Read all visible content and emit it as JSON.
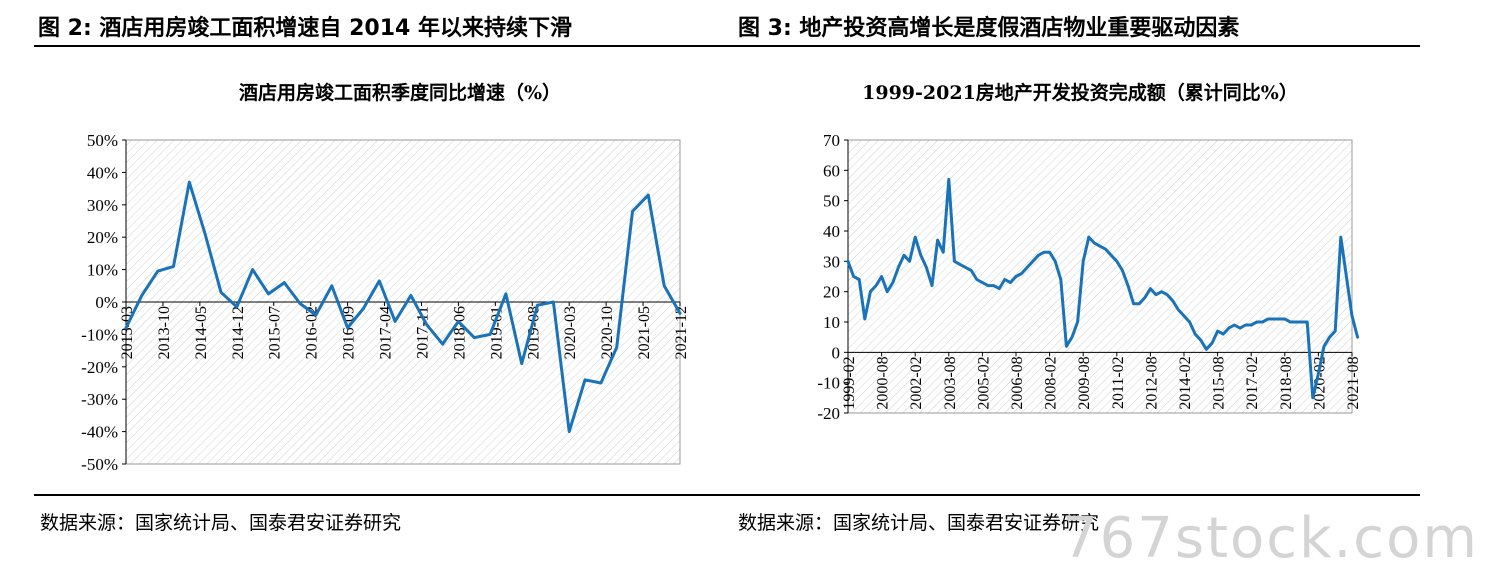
{
  "figures": [
    {
      "heading": "图 2:  酒店用房竣工面积增速自 2014 年以来持续下滑",
      "source": "数据来源：国家统计局、国泰君安证券研究"
    },
    {
      "heading": "图 3:  地产投资高增长是度假酒店物业重要驱动因素",
      "source": "数据来源：国家统计局、国泰君安证券研究"
    }
  ],
  "watermark": "767stock.com",
  "colors": {
    "line": "#1a73b8",
    "grid_hatch": "#cccccc",
    "axis": "#000000"
  },
  "chart_data": [
    {
      "type": "line",
      "title": "酒店用房竣工面积季度同比增速（%）",
      "xlabel": "",
      "ylabel": "",
      "ylim": [
        -50,
        50
      ],
      "y_ticks": [
        "50%",
        "40%",
        "30%",
        "20%",
        "10%",
        "0%",
        "-10%",
        "-20%",
        "-30%",
        "-40%",
        "-50%"
      ],
      "x_tick_labels": [
        "2013-03",
        "2013-10",
        "2014-05",
        "2014-12",
        "2015-07",
        "2016-02",
        "2016-09",
        "2017-04",
        "2017-11",
        "2018-06",
        "2019-01",
        "2019-08",
        "2020-03",
        "2020-10",
        "2021-05",
        "2021-12"
      ],
      "grid": "diagonal-hatch",
      "x": [
        "2013-03",
        "2013-06",
        "2013-09",
        "2013-12",
        "2014-03",
        "2014-06",
        "2014-09",
        "2014-12",
        "2015-03",
        "2015-06",
        "2015-09",
        "2015-12",
        "2016-03",
        "2016-06",
        "2016-09",
        "2016-12",
        "2017-03",
        "2017-06",
        "2017-09",
        "2017-12",
        "2018-03",
        "2018-06",
        "2018-09",
        "2018-12",
        "2019-03",
        "2019-06",
        "2019-09",
        "2019-12",
        "2020-03",
        "2020-06",
        "2020-09",
        "2020-12",
        "2021-03",
        "2021-06",
        "2021-09",
        "2021-12"
      ],
      "series": [
        {
          "values": [
            -8,
            2,
            9.5,
            11,
            37,
            21,
            3,
            -1.5,
            10,
            2.5,
            6,
            -0.5,
            -4,
            5,
            -8,
            -2,
            6.5,
            -6,
            2,
            -7,
            -13,
            -6,
            -11,
            -10,
            2.5,
            -19,
            -1,
            0,
            -40,
            -24,
            -25,
            -14,
            28,
            33,
            5,
            -3.5
          ]
        }
      ]
    },
    {
      "type": "line",
      "title": "1999-2021房地产开发投资完成额（累计同比%）",
      "xlabel": "",
      "ylabel": "",
      "ylim": [
        -20,
        70
      ],
      "y_ticks": [
        "70",
        "60",
        "50",
        "40",
        "30",
        "20",
        "10",
        "0",
        "-10",
        "-20"
      ],
      "x_tick_labels": [
        "1999-02",
        "2000-08",
        "2002-02",
        "2003-08",
        "2005-02",
        "2006-08",
        "2008-02",
        "2009-08",
        "2011-02",
        "2012-08",
        "2014-02",
        "2015-08",
        "2017-02",
        "2018-08",
        "2020-02",
        "2021-08"
      ],
      "grid": "diagonal-hatch",
      "x": [
        "1999-02",
        "1999-05",
        "1999-08",
        "1999-11",
        "2000-02",
        "2000-05",
        "2000-08",
        "2000-11",
        "2001-02",
        "2001-05",
        "2001-08",
        "2001-11",
        "2002-02",
        "2002-05",
        "2002-08",
        "2002-11",
        "2003-02",
        "2003-05",
        "2003-08",
        "2003-11",
        "2004-02",
        "2004-05",
        "2004-08",
        "2004-11",
        "2005-02",
        "2005-05",
        "2005-08",
        "2005-11",
        "2006-02",
        "2006-05",
        "2006-08",
        "2006-11",
        "2007-02",
        "2007-05",
        "2007-08",
        "2007-11",
        "2008-02",
        "2008-05",
        "2008-08",
        "2008-11",
        "2009-02",
        "2009-05",
        "2009-08",
        "2009-11",
        "2010-02",
        "2010-05",
        "2010-08",
        "2010-11",
        "2011-02",
        "2011-05",
        "2011-08",
        "2011-11",
        "2012-02",
        "2012-05",
        "2012-08",
        "2012-11",
        "2013-02",
        "2013-05",
        "2013-08",
        "2013-11",
        "2014-02",
        "2014-05",
        "2014-08",
        "2014-11",
        "2015-02",
        "2015-05",
        "2015-08",
        "2015-11",
        "2016-02",
        "2016-05",
        "2016-08",
        "2016-11",
        "2017-02",
        "2017-05",
        "2017-08",
        "2017-11",
        "2018-02",
        "2018-05",
        "2018-08",
        "2018-11",
        "2019-02",
        "2019-05",
        "2019-08",
        "2019-11",
        "2020-02",
        "2020-05",
        "2020-08",
        "2020-11",
        "2021-02",
        "2021-05",
        "2021-08",
        "2021-11"
      ],
      "series": [
        {
          "values": [
            30,
            25,
            24,
            11,
            20,
            22,
            25,
            20,
            23,
            28,
            32,
            30,
            38,
            32,
            28,
            22,
            37,
            33,
            57,
            30,
            29,
            28,
            27,
            24,
            23,
            22,
            22,
            21,
            24,
            23,
            25,
            26,
            28,
            30,
            32,
            33,
            33,
            30,
            24,
            2,
            5,
            10,
            30,
            38,
            36,
            35,
            34,
            32,
            30,
            27,
            22,
            16,
            16,
            18,
            21,
            19,
            20,
            19,
            17,
            14,
            12,
            10,
            6,
            4,
            1,
            3,
            7,
            6,
            8,
            9,
            8,
            9,
            9,
            10,
            10,
            11,
            11,
            11,
            11,
            10,
            10,
            10,
            10,
            -15,
            -7,
            2,
            5,
            7,
            38,
            25,
            12,
            5
          ]
        }
      ]
    }
  ]
}
